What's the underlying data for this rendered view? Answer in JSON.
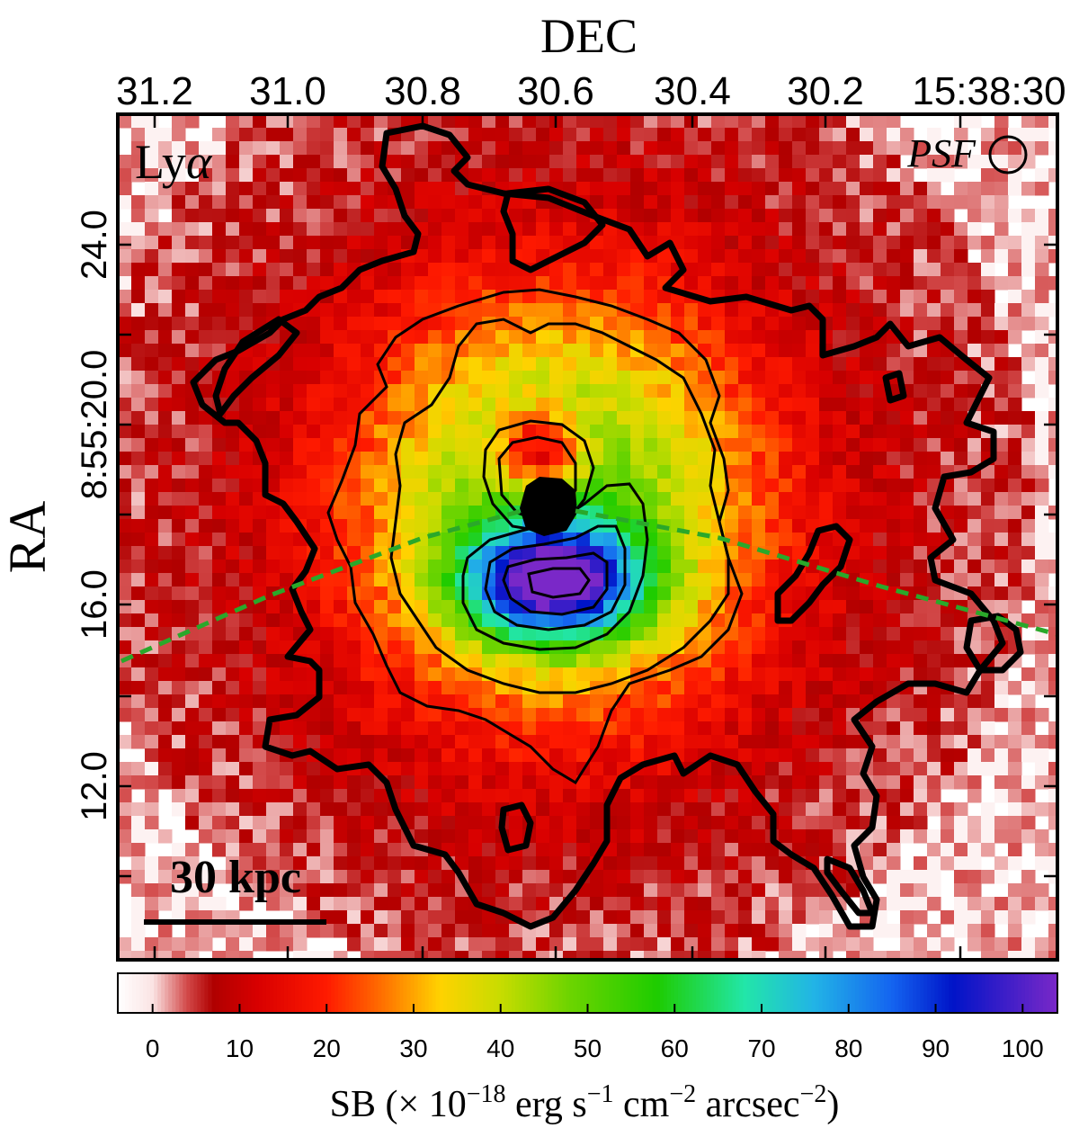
{
  "chart_data": {
    "type": "heatmap",
    "title": "",
    "panel_label": "Lyα",
    "panel_label_base": "Ly",
    "panel_label_greek": "α",
    "psf_label": "PSF",
    "scale_bar_label": "30 kpc",
    "xlabel": "DEC",
    "ylabel": "RA",
    "x_ticks": [
      "31.2",
      "31.0",
      "30.8",
      "30.6",
      "30.4",
      "30.2",
      "15:38:30"
    ],
    "y_ticks": [
      "24.0",
      "8:55:20.0",
      "16.0",
      "12.0"
    ],
    "colorbar": {
      "label": "SB (× 10−18 erg s−1 cm−2 arcsec−2)",
      "label_parts": [
        "SB (× 10",
        "−18",
        " erg s",
        "−1",
        " cm",
        "−2",
        " arcsec",
        "−2",
        ")"
      ],
      "ticks": [
        0,
        10,
        20,
        30,
        40,
        50,
        60,
        70,
        80,
        90,
        100
      ],
      "range": [
        -4,
        104
      ],
      "stops": [
        {
          "v": -4,
          "c": "#ffffff"
        },
        {
          "v": 0,
          "c": "#fbe4e4"
        },
        {
          "v": 4,
          "c": "#d24848"
        },
        {
          "v": 7,
          "c": "#b00000"
        },
        {
          "v": 12,
          "c": "#d80000"
        },
        {
          "v": 20,
          "c": "#ff1a00"
        },
        {
          "v": 26,
          "c": "#ff6a00"
        },
        {
          "v": 33,
          "c": "#ffd200"
        },
        {
          "v": 40,
          "c": "#c8dc00"
        },
        {
          "v": 48,
          "c": "#6cd400"
        },
        {
          "v": 58,
          "c": "#1ecc00"
        },
        {
          "v": 68,
          "c": "#22e6a8"
        },
        {
          "v": 76,
          "c": "#22b4e6"
        },
        {
          "v": 85,
          "c": "#1464f0"
        },
        {
          "v": 92,
          "c": "#0014c8"
        },
        {
          "v": 104,
          "c": "#7a28c8"
        }
      ]
    },
    "colors": {
      "contour": "#000000",
      "cut_line": "#2aa82a",
      "frame": "#000000"
    }
  }
}
